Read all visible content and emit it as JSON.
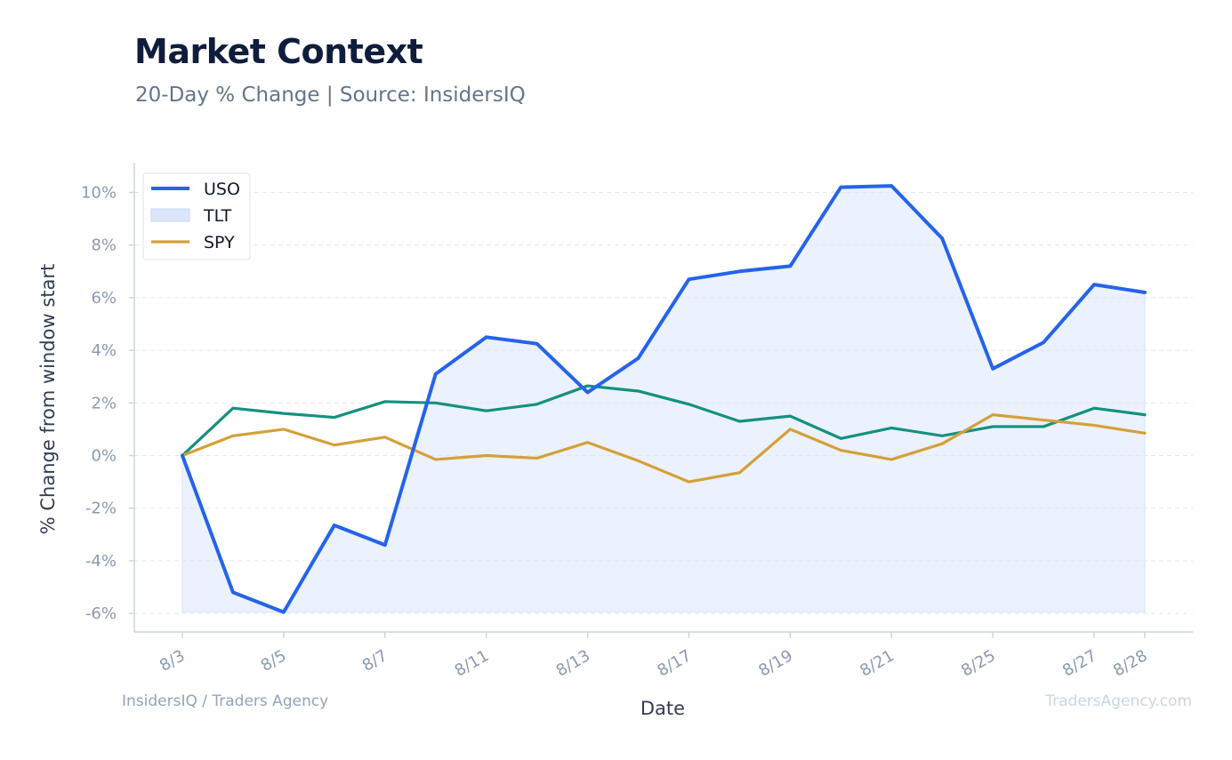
{
  "header": {
    "title": "Market Context",
    "subtitle": "20-Day % Change | Source: InsidersIQ"
  },
  "footer": {
    "left": "InsidersIQ / Traders Agency",
    "right": "TradersAgency.com"
  },
  "colors": {
    "uso": "#2563eb",
    "tlt_line": "#14917e",
    "tlt_fill": "#dbe6fb",
    "spy": "#d4a03a",
    "grid": "#e5e7eb",
    "axis": "#cbd5e1"
  },
  "chart_data": {
    "type": "line",
    "xlabel": "Date",
    "ylabel": "% Change from window start",
    "ylim": [
      -6.5,
      11
    ],
    "yticks": [
      -6,
      -4,
      -2,
      0,
      2,
      4,
      6,
      8,
      10
    ],
    "ytick_labels": [
      "-6%",
      "-4%",
      "-2%",
      "0%",
      "2%",
      "4%",
      "6%",
      "8%",
      "10%"
    ],
    "x_dates": [
      "8/3",
      "8/4",
      "8/5",
      "8/6",
      "8/7",
      "8/8",
      "8/11",
      "8/12",
      "8/13",
      "8/14",
      "8/17",
      "8/18",
      "8/19",
      "8/20",
      "8/21",
      "8/22",
      "8/25",
      "8/26",
      "8/27",
      "8/28"
    ],
    "x_tick_labels": [
      "8/3",
      "8/5",
      "8/7",
      "8/11",
      "8/13",
      "8/17",
      "8/19",
      "8/21",
      "8/25",
      "8/27",
      "8/28"
    ],
    "grid": true,
    "legend_position": "top-left",
    "series": [
      {
        "name": "USO",
        "style": "line",
        "values": [
          0.0,
          -5.2,
          -5.95,
          -2.65,
          -3.4,
          3.1,
          4.5,
          4.25,
          2.4,
          3.7,
          6.7,
          7.0,
          7.2,
          10.2,
          10.25,
          8.25,
          3.3,
          4.3,
          6.5,
          6.2
        ]
      },
      {
        "name": "TLT",
        "style": "area",
        "values": [
          0.0,
          1.8,
          1.6,
          1.45,
          2.05,
          2.0,
          1.7,
          1.95,
          2.65,
          2.45,
          1.95,
          1.3,
          1.5,
          0.65,
          1.05,
          0.75,
          1.1,
          1.1,
          1.8,
          1.55
        ]
      },
      {
        "name": "SPY",
        "style": "line",
        "values": [
          0.0,
          0.75,
          1.0,
          0.4,
          0.7,
          -0.15,
          0.0,
          -0.1,
          0.5,
          -0.2,
          -1.0,
          -0.65,
          1.0,
          0.2,
          -0.15,
          0.45,
          1.55,
          1.35,
          1.15,
          0.85
        ]
      }
    ]
  }
}
